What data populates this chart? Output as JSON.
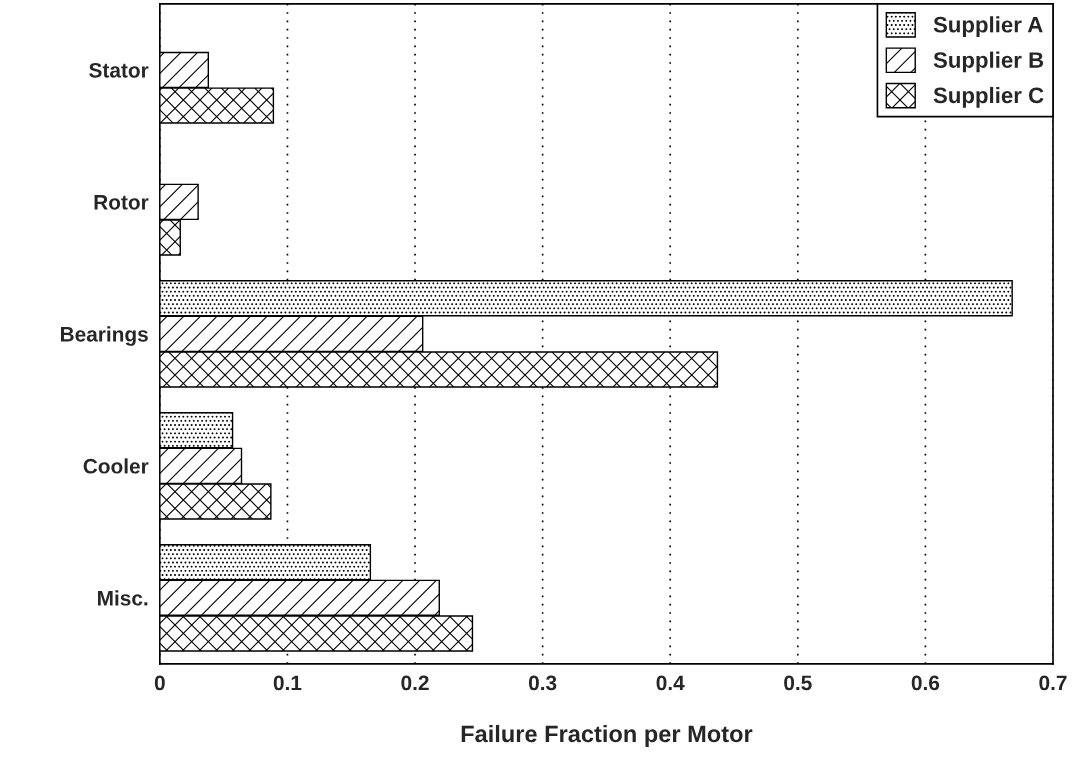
{
  "chart_data": {
    "type": "bar",
    "orientation": "horizontal",
    "xlabel": "Failure Fraction per Motor",
    "categories": [
      "Stator",
      "Rotor",
      "Bearings",
      "Cooler",
      "Misc."
    ],
    "series": [
      {
        "name": "Supplier A",
        "color": "#000000",
        "values": [
          null,
          null,
          0.668,
          0.057,
          0.165
        ]
      },
      {
        "name": "Supplier B",
        "color": "#000000",
        "values": [
          0.038,
          0.03,
          0.206,
          0.064,
          0.219
        ]
      },
      {
        "name": "Supplier C",
        "color": "#000000",
        "values": [
          0.089,
          0.016,
          0.437,
          0.087,
          0.245
        ]
      }
    ],
    "xlim": [
      0,
      0.7
    ],
    "xticks": [
      0,
      0.1,
      0.2,
      0.3,
      0.4,
      0.5,
      0.6,
      0.7
    ],
    "grid": "x",
    "legend": "top right"
  }
}
